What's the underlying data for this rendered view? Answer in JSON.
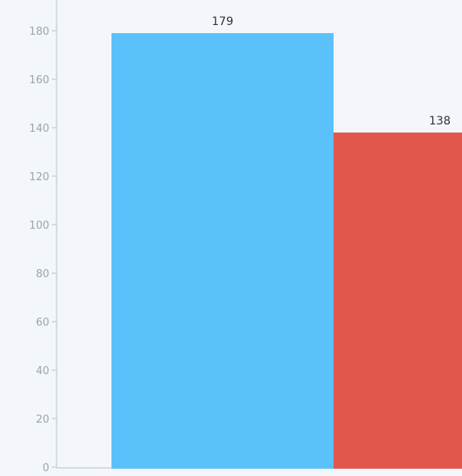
{
  "chart_data": {
    "type": "bar",
    "categories": [
      "",
      ""
    ],
    "values": [
      179,
      138
    ],
    "data_labels": [
      "179",
      "138"
    ],
    "ylim": [
      0,
      190
    ],
    "yticks": [
      0,
      20,
      40,
      60,
      80,
      100,
      120,
      140,
      160,
      180
    ],
    "ytick_labels": [
      "0",
      "20",
      "40",
      "60",
      "80",
      "100",
      "120",
      "140",
      "160",
      "180"
    ],
    "colors": [
      "#5bc1fb",
      "#e2574c"
    ],
    "grid": false,
    "legend": "none"
  },
  "colors": {
    "background": "#f3f7fb",
    "axis": "#b9c1c9",
    "tick_label": "#9ba3ab",
    "data_label": "#333333"
  }
}
